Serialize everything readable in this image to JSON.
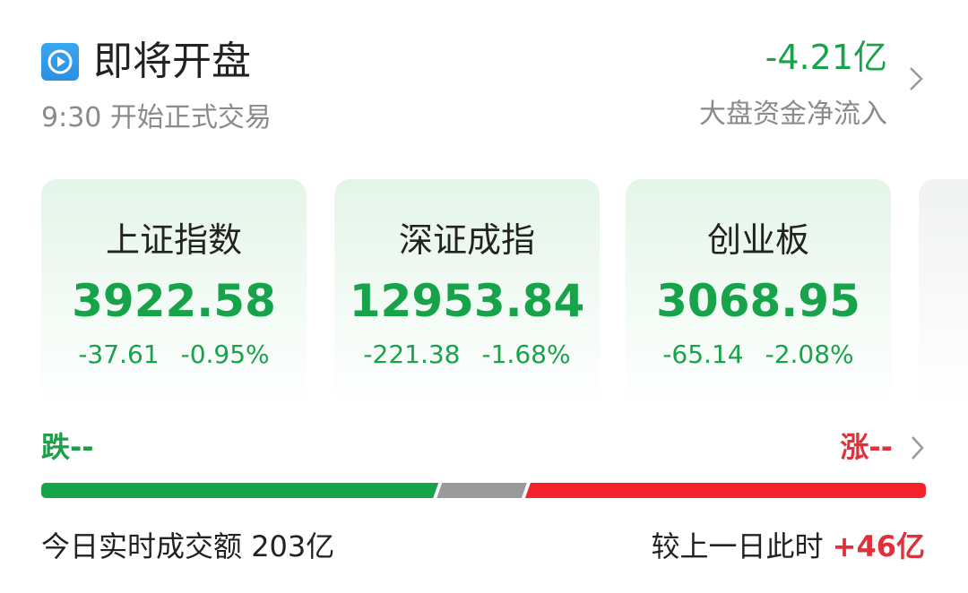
{
  "header": {
    "icon": "play-circle-icon",
    "title": "即将开盘",
    "subtitle": "9:30 开始正式交易"
  },
  "fund_flow": {
    "value": "-4.21亿",
    "label": "大盘资金净流入"
  },
  "indices": [
    {
      "name": "上证指数",
      "value": "3922.58",
      "change": "-37.61",
      "percent": "-0.95%"
    },
    {
      "name": "深证成指",
      "value": "12953.84",
      "change": "-221.38",
      "percent": "-1.68%"
    },
    {
      "name": "创业板",
      "value": "3068.95",
      "change": "-65.14",
      "percent": "-2.08%"
    }
  ],
  "breadth": {
    "fall_label": "跌--",
    "rise_label": "涨--",
    "fall_fraction": 0.445,
    "flat_fraction": 0.1,
    "rise_fraction": 0.455
  },
  "colors": {
    "down": "#16a34a",
    "up": "#e0313a",
    "flat": "#9a9a9a",
    "icon": "#2a8fe3"
  },
  "footer": {
    "turnover_label": "今日实时成交额",
    "turnover_value": "203亿",
    "compare_label": "较上一日此时",
    "compare_value": "+46亿"
  }
}
